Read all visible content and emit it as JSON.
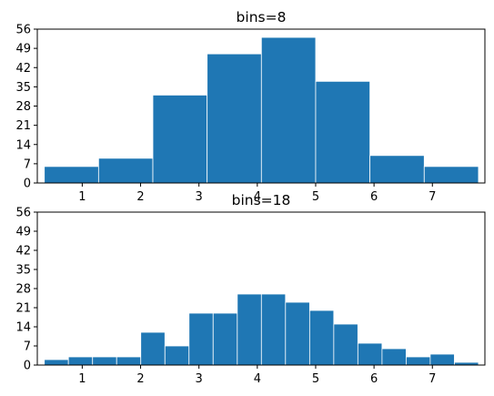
{
  "chart_data": [
    {
      "type": "bar",
      "title": "bins=8",
      "bar_color": "#1f77b4",
      "edge_color": "#ffffff",
      "xlim": [
        0.23,
        7.9
      ],
      "ylim": [
        0,
        56
      ],
      "yticks": [
        0,
        7,
        14,
        21,
        28,
        35,
        42,
        49,
        56
      ],
      "xticks": [
        1,
        2,
        3,
        4,
        5,
        6,
        7
      ],
      "bin_edges": [
        0.35,
        1.28,
        2.21,
        3.14,
        4.07,
        5.0,
        5.93,
        6.86,
        7.79
      ],
      "values": [
        6,
        9,
        32,
        47,
        53,
        37,
        10,
        6
      ]
    },
    {
      "type": "bar",
      "title": "bins=18",
      "bar_color": "#1f77b4",
      "edge_color": "#ffffff",
      "xlim": [
        0.23,
        7.9
      ],
      "ylim": [
        0,
        56
      ],
      "yticks": [
        0,
        7,
        14,
        21,
        28,
        35,
        42,
        49,
        56
      ],
      "xticks": [
        1,
        2,
        3,
        4,
        5,
        6,
        7
      ],
      "bin_edges": [
        0.35,
        0.763,
        1.177,
        1.59,
        2.003,
        2.417,
        2.83,
        3.243,
        3.657,
        4.07,
        4.483,
        4.897,
        5.31,
        5.723,
        6.137,
        6.55,
        6.963,
        7.377,
        7.79
      ],
      "values": [
        2,
        3,
        3,
        3,
        12,
        7,
        19,
        19,
        26,
        26,
        23,
        20,
        15,
        8,
        6,
        3,
        4,
        1
      ]
    }
  ]
}
